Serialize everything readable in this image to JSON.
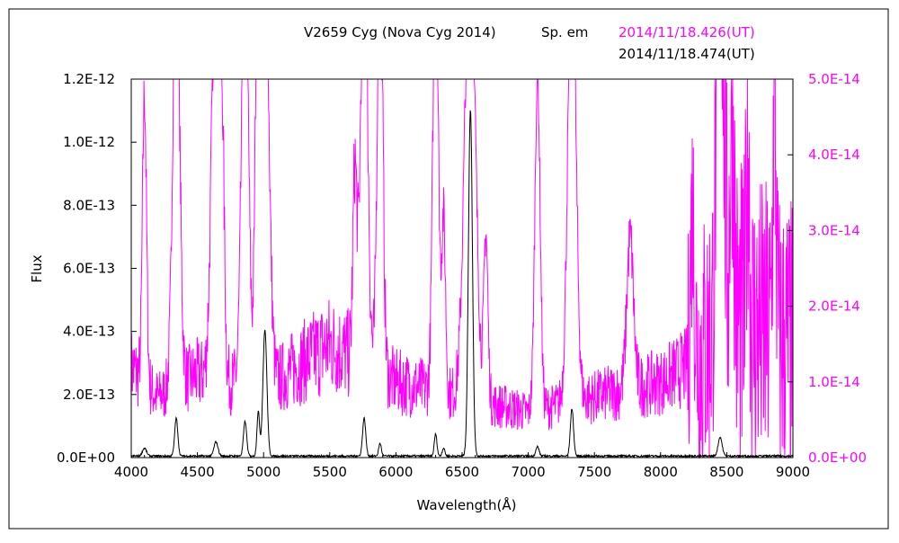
{
  "chart_data": {
    "type": "line",
    "title": "V2659 Cyg (Nova Cyg 2014)",
    "title_note": "Sp. em",
    "xlabel": "Wavelength(Å)",
    "ylabel": "Flux",
    "xlim": [
      4000,
      9000
    ],
    "x_ticks": [
      4000,
      4500,
      5000,
      5500,
      6000,
      6500,
      7000,
      7500,
      8000,
      8500,
      9000
    ],
    "x_tick_labels": [
      "4000",
      "4500",
      "5000",
      "5500",
      "6000",
      "6500",
      "7000",
      "7500",
      "8000",
      "8500",
      "9000"
    ],
    "y_left": {
      "lim": [
        0,
        1.2e-12
      ],
      "ticks": [
        0,
        2e-13,
        4e-13,
        6e-13,
        8e-13,
        1e-12,
        1.2e-12
      ],
      "tick_labels": [
        "0.0E+00",
        "2.0E-13",
        "4.0E-13",
        "6.0E-13",
        "8.0E-13",
        "1.0E-12",
        "1.2E-12"
      ],
      "color": "#000000"
    },
    "y_right": {
      "lim": [
        0,
        5e-14
      ],
      "ticks": [
        0,
        1e-14,
        2e-14,
        3e-14,
        4e-14,
        5e-14
      ],
      "tick_labels": [
        "0.0E+00",
        "1.0E-14",
        "2.0E-14",
        "3.0E-14",
        "4.0E-14",
        "5.0E-14"
      ],
      "color": "#ff00ff"
    },
    "grid": false,
    "legend_placement": "top-right",
    "series": [
      {
        "name": "2014/11/18.426(UT)",
        "color": "#ff00ff",
        "axis": "right",
        "baseline": [
          [
            4000,
            1.2e-14
          ],
          [
            4200,
            8e-15
          ],
          [
            4500,
            1.1e-14
          ],
          [
            5000,
            9e-15
          ],
          [
            5500,
            1.5e-14
          ],
          [
            6000,
            1e-14
          ],
          [
            6500,
            8e-15
          ],
          [
            7000,
            6e-15
          ],
          [
            7500,
            8e-15
          ],
          [
            8000,
            1e-14
          ],
          [
            8200,
            1.2e-14
          ],
          [
            8500,
            1.8e-14
          ],
          [
            9000,
            1.5e-14
          ]
        ],
        "peaks": [
          {
            "x": 4100,
            "y": 3.8e-14,
            "w": 15
          },
          {
            "x": 4340,
            "y": 6e-14,
            "w": 25
          },
          {
            "x": 4640,
            "y": 6e-14,
            "w": 30
          },
          {
            "x": 4690,
            "y": 2.2e-14,
            "w": 15
          },
          {
            "x": 4860,
            "y": 6e-14,
            "w": 25
          },
          {
            "x": 4960,
            "y": 6e-14,
            "w": 20
          },
          {
            "x": 5010,
            "y": 6e-14,
            "w": 30
          },
          {
            "x": 5690,
            "y": 2.5e-14,
            "w": 15
          },
          {
            "x": 5760,
            "y": 6e-14,
            "w": 25
          },
          {
            "x": 5880,
            "y": 6e-14,
            "w": 20
          },
          {
            "x": 6300,
            "y": 6e-14,
            "w": 20
          },
          {
            "x": 6360,
            "y": 2.3e-14,
            "w": 15
          },
          {
            "x": 6560,
            "y": 6e-14,
            "w": 40
          },
          {
            "x": 6680,
            "y": 2.2e-14,
            "w": 15
          },
          {
            "x": 7070,
            "y": 4.4e-14,
            "w": 20
          },
          {
            "x": 7330,
            "y": 6e-14,
            "w": 30
          },
          {
            "x": 7770,
            "y": 2e-14,
            "w": 25
          },
          {
            "x": 8240,
            "y": 2e-14,
            "w": 15
          },
          {
            "x": 8450,
            "y": 6e-14,
            "w": 25
          },
          {
            "x": 8540,
            "y": 3.1e-14,
            "w": 15
          },
          {
            "x": 8660,
            "y": 2.5e-14,
            "w": 12
          },
          {
            "x": 8860,
            "y": 3.3e-14,
            "w": 12
          }
        ]
      },
      {
        "name": "2014/11/18.474(UT)",
        "color": "#000000",
        "axis": "left",
        "baseline": [
          [
            4000,
            5e-15
          ],
          [
            9000,
            5e-15
          ]
        ],
        "peaks": [
          {
            "x": 4100,
            "y": 2.5e-14,
            "w": 15
          },
          {
            "x": 4340,
            "y": 1.2e-13,
            "w": 12
          },
          {
            "x": 4640,
            "y": 4.5e-14,
            "w": 15
          },
          {
            "x": 4860,
            "y": 1.1e-13,
            "w": 12
          },
          {
            "x": 4960,
            "y": 1.4e-13,
            "w": 10
          },
          {
            "x": 5010,
            "y": 4e-13,
            "w": 15
          },
          {
            "x": 5760,
            "y": 1.2e-13,
            "w": 12
          },
          {
            "x": 5880,
            "y": 4e-14,
            "w": 10
          },
          {
            "x": 6300,
            "y": 7e-14,
            "w": 10
          },
          {
            "x": 6360,
            "y": 2.5e-14,
            "w": 10
          },
          {
            "x": 6563,
            "y": 1.1e-12,
            "w": 15
          },
          {
            "x": 7070,
            "y": 3e-14,
            "w": 12
          },
          {
            "x": 7330,
            "y": 1.5e-13,
            "w": 12
          },
          {
            "x": 8450,
            "y": 6e-14,
            "w": 15
          }
        ]
      }
    ]
  }
}
